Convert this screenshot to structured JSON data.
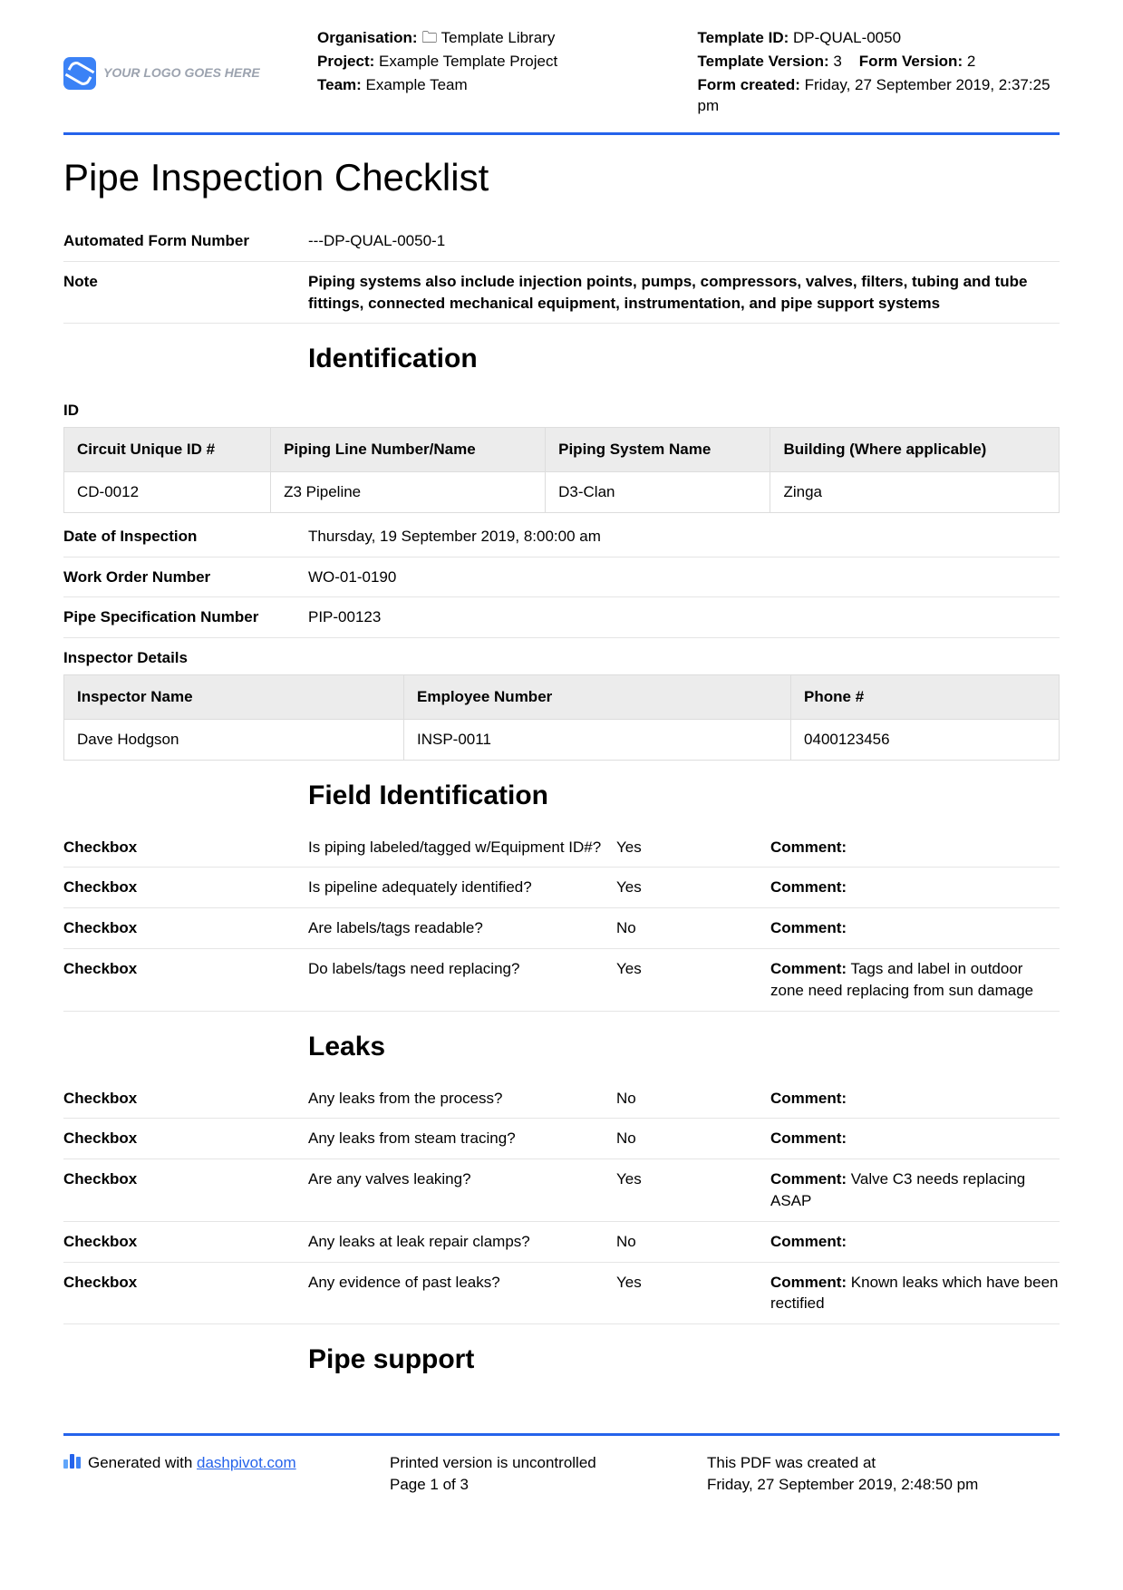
{
  "header": {
    "logo_text": "YOUR LOGO GOES HERE",
    "org_label": "Organisation:",
    "org_value": "Template Library",
    "project_label": "Project:",
    "project_value": "Example Template Project",
    "team_label": "Team:",
    "team_value": "Example Team",
    "template_id_label": "Template ID:",
    "template_id_value": "DP-QUAL-0050",
    "template_version_label": "Template Version:",
    "template_version_value": "3",
    "form_version_label": "Form Version:",
    "form_version_value": "2",
    "form_created_label": "Form created:",
    "form_created_value": "Friday, 27 September 2019, 2:37:25 pm"
  },
  "title": "Pipe Inspection Checklist",
  "fields": {
    "auto_form_number_label": "Automated Form Number",
    "auto_form_number_value": "---DP-QUAL-0050-1",
    "note_label": "Note",
    "note_value": "Piping systems also include injection points, pumps, compressors, valves, filters, tubing and tube fittings, connected mechanical equipment, instrumentation, and pipe support systems"
  },
  "sections": {
    "identification": "Identification",
    "field_identification": "Field Identification",
    "leaks": "Leaks",
    "pipe_support": "Pipe support"
  },
  "id_section": {
    "id_label": "ID",
    "columns": [
      "Circuit Unique ID #",
      "Piping Line Number/Name",
      "Piping System Name",
      "Building (Where applicable)"
    ],
    "row": [
      "CD-0012",
      "Z3 Pipeline",
      "D3-Clan",
      "Zinga"
    ],
    "date_label": "Date of Inspection",
    "date_value": "Thursday, 19 September 2019, 8:00:00 am",
    "wo_label": "Work Order Number",
    "wo_value": "WO-01-0190",
    "spec_label": "Pipe Specification Number",
    "spec_value": "PIP-00123",
    "inspector_label": "Inspector Details",
    "inspector_columns": [
      "Inspector Name",
      "Employee Number",
      "Phone #"
    ],
    "inspector_row": [
      "Dave Hodgson",
      "INSP-0011",
      "0400123456"
    ]
  },
  "checkbox_label": "Checkbox",
  "comment_label": "Comment:",
  "field_id_rows": [
    {
      "q": "Is piping labeled/tagged w/Equipment ID#?",
      "a": "Yes",
      "c": ""
    },
    {
      "q": "Is pipeline adequately identified?",
      "a": "Yes",
      "c": ""
    },
    {
      "q": "Are labels/tags readable?",
      "a": "No",
      "c": ""
    },
    {
      "q": "Do labels/tags need replacing?",
      "a": "Yes",
      "c": "Tags and label in outdoor zone need replacing from sun damage"
    }
  ],
  "leaks_rows": [
    {
      "q": "Any leaks from the process?",
      "a": "No",
      "c": ""
    },
    {
      "q": "Any leaks from steam tracing?",
      "a": "No",
      "c": ""
    },
    {
      "q": "Are any valves leaking?",
      "a": "Yes",
      "c": "Valve C3 needs replacing ASAP"
    },
    {
      "q": "Any leaks at leak repair clamps?",
      "a": "No",
      "c": ""
    },
    {
      "q": "Any evidence of past leaks?",
      "a": "Yes",
      "c": "Known leaks which have been rectified"
    }
  ],
  "footer": {
    "generated_text": "Generated with ",
    "generated_link": "dashpivot.com",
    "printed_text": "Printed version is uncontrolled",
    "page_text": "Page 1 of 3",
    "created_label": "This PDF was created at",
    "created_value": "Friday, 27 September 2019, 2:48:50 pm"
  }
}
